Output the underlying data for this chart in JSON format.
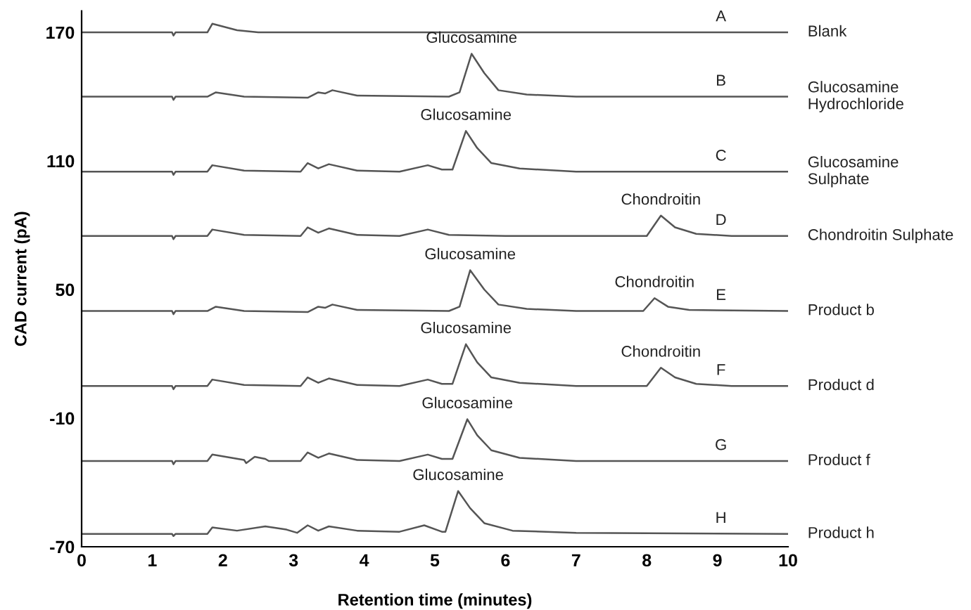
{
  "chart_data": {
    "type": "line",
    "xlabel": "Retention time (minutes)",
    "ylabel": "CAD current (pA)",
    "xlim": [
      0,
      10
    ],
    "xticks": [
      0,
      1,
      2,
      3,
      4,
      5,
      6,
      7,
      8,
      9,
      10
    ],
    "ylim": [
      -70,
      180
    ],
    "yticks": [
      170,
      110,
      50,
      -10,
      -70
    ],
    "series": [
      {
        "name": "Blank",
        "color": "#555555",
        "x": [
          0,
          1.28,
          1.3,
          1.33,
          1.78,
          1.85,
          2.2,
          2.5,
          10
        ],
        "values": [
          170,
          170,
          168.5,
          170,
          170,
          174,
          171,
          170,
          170
        ]
      },
      {
        "name": "Glucosamine\nHydrochloride",
        "color": "#555555",
        "x": [
          0,
          1.28,
          1.3,
          1.33,
          1.78,
          1.9,
          2.3,
          3.2,
          3.35,
          3.45,
          3.55,
          3.9,
          5.2,
          5.35,
          5.52,
          5.7,
          5.9,
          6.3,
          7,
          10
        ],
        "values": [
          140,
          140,
          138.5,
          140,
          140,
          142,
          140,
          139.5,
          142,
          141.5,
          143,
          140.5,
          140,
          142,
          160,
          151,
          143,
          141,
          140,
          140
        ]
      },
      {
        "name": "Glucosamine\nSulphate",
        "color": "#555555",
        "x": [
          0,
          1.28,
          1.3,
          1.33,
          1.78,
          1.85,
          2.3,
          3.1,
          3.2,
          3.35,
          3.5,
          3.9,
          4.5,
          4.9,
          5.1,
          5.25,
          5.44,
          5.6,
          5.8,
          6.2,
          7,
          10
        ],
        "values": [
          105,
          105,
          103.5,
          105,
          105,
          108,
          105.5,
          105,
          109,
          106.5,
          108.5,
          105.5,
          105,
          108,
          106,
          106,
          124,
          116,
          109,
          106.5,
          105,
          105
        ]
      },
      {
        "name": "Chondroitin Sulphate",
        "color": "#555555",
        "x": [
          0,
          1.28,
          1.3,
          1.33,
          1.78,
          1.85,
          2.3,
          3.1,
          3.2,
          3.35,
          3.5,
          3.9,
          4.5,
          4.9,
          5.2,
          6,
          8,
          8.2,
          8.4,
          8.7,
          9.2,
          10
        ],
        "values": [
          75,
          75,
          73.5,
          75,
          75,
          78,
          75.5,
          75,
          79,
          76.5,
          78.5,
          75.5,
          75,
          78,
          75.5,
          75,
          75,
          84.5,
          79,
          76,
          75,
          75
        ]
      },
      {
        "name": "Product b",
        "color": "#555555",
        "x": [
          0,
          1.28,
          1.3,
          1.33,
          1.78,
          1.9,
          2.3,
          3.2,
          3.35,
          3.45,
          3.55,
          3.9,
          5.2,
          5.35,
          5.5,
          5.7,
          5.9,
          6.3,
          7,
          7.95,
          8.11,
          8.3,
          8.6,
          10
        ],
        "values": [
          40,
          40,
          38.5,
          40,
          40,
          42,
          40,
          39.5,
          42,
          41.5,
          43,
          40.5,
          40,
          42,
          59,
          50,
          43,
          41,
          40,
          40,
          46,
          42,
          40.5,
          40
        ]
      },
      {
        "name": "Product d",
        "color": "#555555",
        "x": [
          0,
          1.28,
          1.3,
          1.33,
          1.78,
          1.85,
          2.3,
          3.1,
          3.2,
          3.35,
          3.5,
          3.9,
          4.5,
          4.9,
          5.1,
          5.25,
          5.44,
          5.6,
          5.8,
          6.2,
          7,
          8,
          8.2,
          8.4,
          8.7,
          9.2,
          10
        ],
        "values": [
          5,
          5,
          3.5,
          5,
          5,
          8,
          5.5,
          5,
          9,
          6.5,
          8.5,
          5.5,
          5,
          8,
          6,
          6,
          24.5,
          16,
          9,
          6.5,
          5,
          5,
          13.5,
          9,
          6,
          5,
          5
        ]
      },
      {
        "name": "Product f",
        "color": "#555555",
        "x": [
          0,
          1.28,
          1.3,
          1.33,
          1.78,
          1.85,
          2.3,
          2.33,
          2.45,
          2.6,
          2.65,
          3.1,
          3.2,
          3.35,
          3.5,
          3.9,
          4.5,
          4.9,
          5.1,
          5.25,
          5.46,
          5.6,
          5.8,
          6.2,
          7,
          10
        ],
        "values": [
          -30,
          -30,
          -31.5,
          -30,
          -30,
          -27,
          -29.5,
          -31,
          -28,
          -29,
          -30,
          -30,
          -26,
          -28.5,
          -26.5,
          -29.5,
          -30,
          -27,
          -29,
          -29,
          -10.5,
          -18,
          -25,
          -28.5,
          -30,
          -30
        ]
      },
      {
        "name": "Product h",
        "color": "#555555",
        "x": [
          0,
          1.28,
          1.3,
          1.33,
          1.78,
          1.85,
          2.2,
          2.6,
          2.9,
          3.05,
          3.2,
          3.35,
          3.5,
          3.9,
          4.5,
          4.85,
          5.1,
          5.15,
          5.33,
          5.5,
          5.7,
          6.1,
          7,
          10
        ],
        "values": [
          -64,
          -64,
          -65,
          -64,
          -64,
          -61,
          -62.5,
          -60.5,
          -62,
          -63.5,
          -60,
          -62.5,
          -60.5,
          -62.5,
          -63,
          -60,
          -63,
          -63,
          -44,
          -52,
          -59,
          -62.5,
          -63.5,
          -64
        ]
      }
    ],
    "annotations": [
      {
        "text": "A",
        "x": 9.05,
        "y": 170
      },
      {
        "text": "Glucosamine",
        "x": 5.52,
        "y": 160
      },
      {
        "text": "B",
        "x": 9.05,
        "y": 140
      },
      {
        "text": "Glucosamine",
        "x": 5.44,
        "y": 124
      },
      {
        "text": "C",
        "x": 9.05,
        "y": 105
      },
      {
        "text": "Chondroitin",
        "x": 8.2,
        "y": 84.5
      },
      {
        "text": "D",
        "x": 9.05,
        "y": 75
      },
      {
        "text": "Glucosamine",
        "x": 5.5,
        "y": 59
      },
      {
        "text": "Chondroitin",
        "x": 8.11,
        "y": 46
      },
      {
        "text": "E",
        "x": 9.05,
        "y": 40
      },
      {
        "text": "Glucosamine",
        "x": 5.44,
        "y": 24.5
      },
      {
        "text": "Chondroitin",
        "x": 8.2,
        "y": 13.5
      },
      {
        "text": "F",
        "x": 9.05,
        "y": 5
      },
      {
        "text": "Glucosamine",
        "x": 5.46,
        "y": -10.5
      },
      {
        "text": "G",
        "x": 9.05,
        "y": -30
      },
      {
        "text": "Glucosamine",
        "x": 5.33,
        "y": -44
      },
      {
        "text": "H",
        "x": 9.05,
        "y": -64
      }
    ]
  }
}
